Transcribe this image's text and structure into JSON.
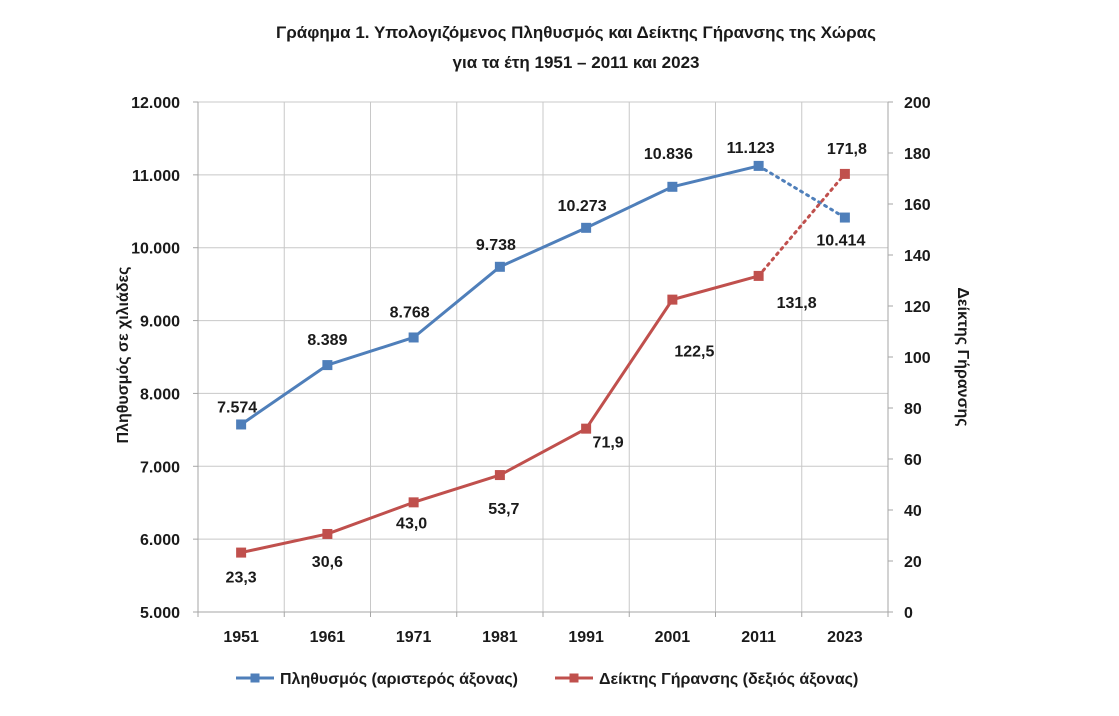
{
  "chart_data": {
    "type": "line",
    "title_line1": "Γράφημα 1. Υπολογιζόμενος Πληθυσμός και Δείκτης Γήρανσης της Χώρας",
    "title_line2": "για τα έτη 1951 – 2011 και 2023",
    "categories": [
      "1951",
      "1961",
      "1971",
      "1981",
      "1991",
      "2001",
      "2011",
      "2023"
    ],
    "y_left": {
      "label": "Πληθυσμός σε χιλιάδες",
      "min": 5000,
      "max": 12000,
      "ticks": [
        5000,
        6000,
        7000,
        8000,
        9000,
        10000,
        11000,
        12000
      ],
      "tick_labels": [
        "5.000",
        "6.000",
        "7.000",
        "8.000",
        "9.000",
        "10.000",
        "11.000",
        "12.000"
      ]
    },
    "y_right": {
      "label": "Δείκτης Γήρανσης",
      "min": 0,
      "max": 200,
      "ticks": [
        0,
        20,
        40,
        60,
        80,
        100,
        120,
        140,
        160,
        180,
        200
      ],
      "tick_labels": [
        "0",
        "20",
        "40",
        "60",
        "80",
        "100",
        "120",
        "140",
        "160",
        "180",
        "200"
      ]
    },
    "grid": true,
    "legend_position": "bottom",
    "series": [
      {
        "name": "Πληθυσμός (αριστερός άξονας)",
        "axis": "left",
        "color": "#4F7FBA",
        "values": [
          7574,
          8389,
          8768,
          9738,
          10273,
          10836,
          11123,
          10414
        ],
        "labels": [
          "7.574",
          "8.389",
          "8.768",
          "9.738",
          "10.273",
          "10.836",
          "11.123",
          "10.414"
        ],
        "dotted_last_segment": true
      },
      {
        "name": "Δείκτης Γήρανσης (δεξιός άξονας)",
        "axis": "right",
        "color": "#C0504D",
        "values": [
          23.3,
          30.6,
          43.0,
          53.7,
          71.9,
          122.5,
          131.8,
          171.8
        ],
        "labels": [
          "23,3",
          "30,6",
          "43,0",
          "53,7",
          "71,9",
          "122,5",
          "131,8",
          "171,8"
        ],
        "dotted_last_segment": true
      }
    ]
  }
}
